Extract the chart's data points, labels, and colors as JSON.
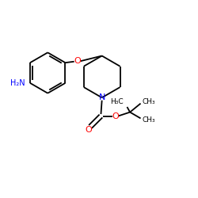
{
  "bg_color": "#ffffff",
  "bond_color": "#000000",
  "N_color": "#0000ff",
  "O_color": "#ff0000",
  "NH2_color": "#0000ff",
  "lw": 1.3,
  "dbo": 0.011,
  "figsize": [
    2.5,
    2.5
  ],
  "dpi": 100,
  "xlim": [
    0,
    1
  ],
  "ylim": [
    0,
    1
  ]
}
